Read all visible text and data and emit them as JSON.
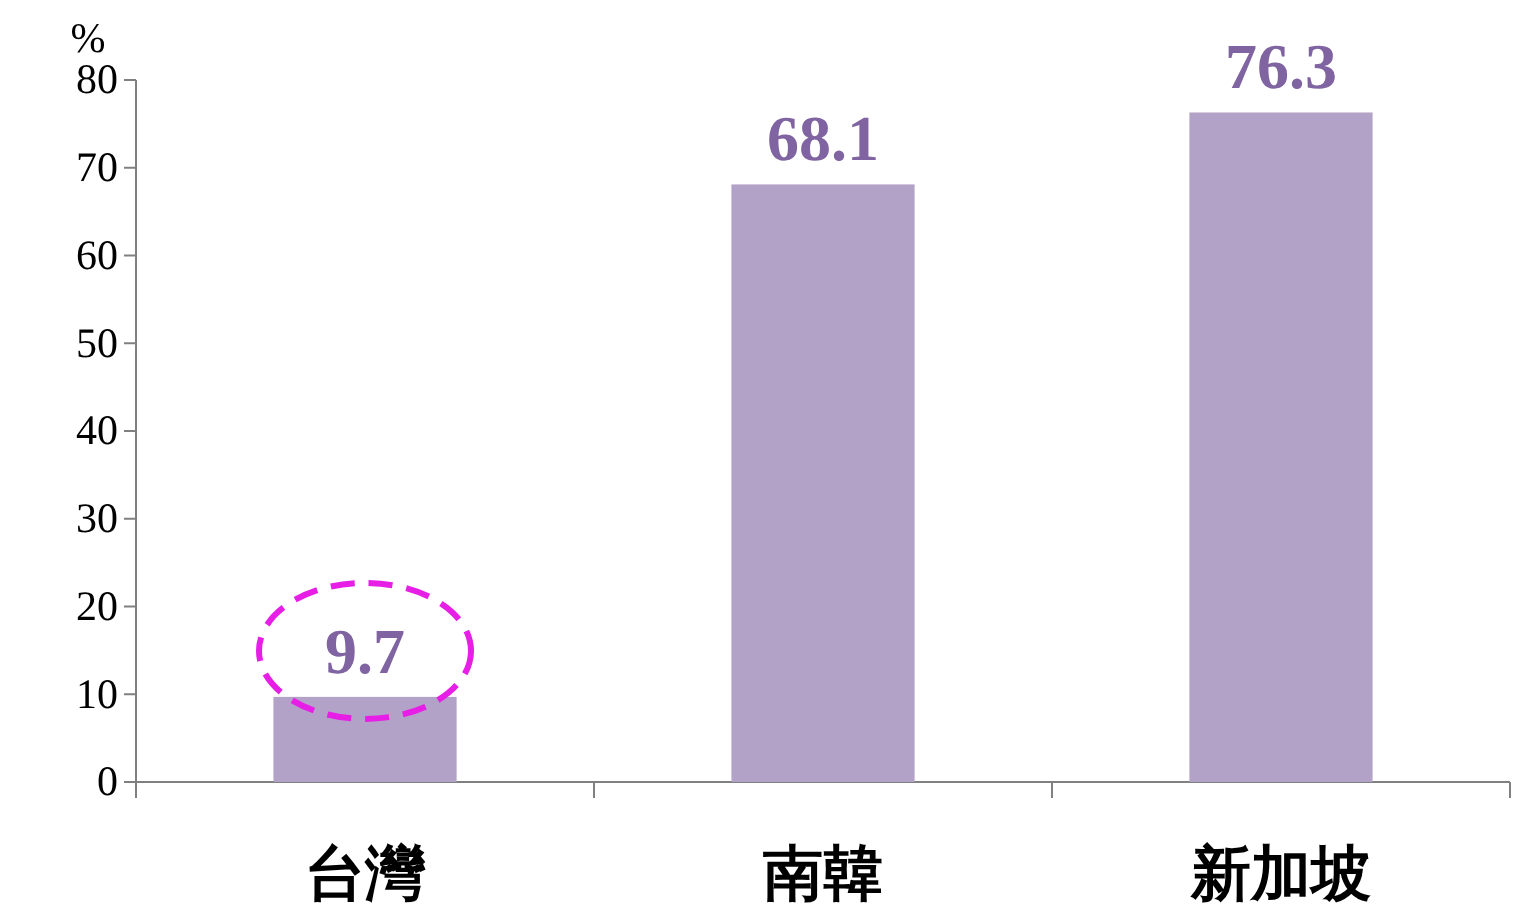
{
  "chart_data": {
    "type": "bar",
    "ylabel": "%",
    "categories": [
      "台灣",
      "南韓",
      "新加坡"
    ],
    "values": [
      9.7,
      68.1,
      76.3
    ],
    "color": "#b3a2c7",
    "ylim": [
      0,
      80
    ],
    "yticks": [
      0,
      10,
      20,
      30,
      40,
      50,
      60,
      70,
      80
    ],
    "data_labels": true
  }
}
